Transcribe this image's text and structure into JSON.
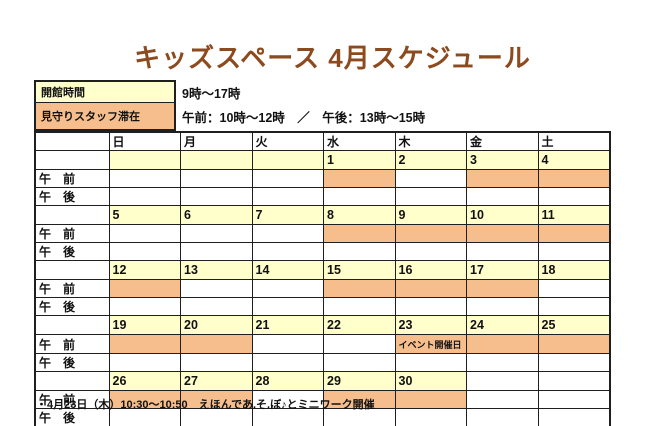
{
  "title": "キッズスペース 4月スケジュール",
  "colors": {
    "title_brown": "#8C4A1E",
    "cell_yellow": "#FFFFCC",
    "cell_orange": "#F6BE8C",
    "sunday_red": "#FF0000",
    "saturday_blue": "#0070C0",
    "grid_line": "#1f1f1f"
  },
  "legend": {
    "rows": [
      {
        "label": "開館時間",
        "value": "9時～17時",
        "swatch": "yellow"
      },
      {
        "label": "見守りスタッフ滞在",
        "value": "午前：10時～12時　／　午後：13時～15時",
        "swatch": "orange"
      }
    ]
  },
  "calendar": {
    "day_headers": [
      {
        "label": "日",
        "color": "red"
      },
      {
        "label": "月"
      },
      {
        "label": "火"
      },
      {
        "label": "水"
      },
      {
        "label": "木"
      },
      {
        "label": "金"
      },
      {
        "label": "土",
        "color": "blue"
      }
    ],
    "row_labels": {
      "am": "午　前",
      "pm": "午　後"
    },
    "event_label": "イベント開催日",
    "weeks": [
      {
        "dates": [
          {
            "t": "",
            "bg": "y"
          },
          {
            "t": "",
            "bg": "y"
          },
          {
            "t": "",
            "bg": "y"
          },
          {
            "t": "1",
            "bg": "y"
          },
          {
            "t": "2",
            "bg": "y"
          },
          {
            "t": "3",
            "bg": "y"
          },
          {
            "t": "4",
            "bg": "y"
          }
        ],
        "am": [
          false,
          false,
          false,
          true,
          false,
          true,
          true
        ],
        "pm": [
          false,
          false,
          false,
          false,
          false,
          false,
          false
        ]
      },
      {
        "dates": [
          {
            "t": "5",
            "bg": "y",
            "red": true
          },
          {
            "t": "6",
            "bg": "y"
          },
          {
            "t": "7",
            "bg": "y"
          },
          {
            "t": "8",
            "bg": "y"
          },
          {
            "t": "9",
            "bg": "y"
          },
          {
            "t": "10",
            "bg": "y"
          },
          {
            "t": "11",
            "bg": "y"
          }
        ],
        "am": [
          false,
          false,
          false,
          true,
          true,
          true,
          true
        ],
        "pm": [
          false,
          false,
          false,
          false,
          false,
          false,
          false
        ]
      },
      {
        "dates": [
          {
            "t": "12",
            "bg": "y",
            "red": true
          },
          {
            "t": "13",
            "bg": "y"
          },
          {
            "t": "14",
            "bg": "y"
          },
          {
            "t": "15",
            "bg": "y"
          },
          {
            "t": "16",
            "bg": "y"
          },
          {
            "t": "17",
            "bg": "y"
          },
          {
            "t": "18",
            "bg": "y"
          }
        ],
        "am": [
          true,
          false,
          false,
          true,
          true,
          true,
          false
        ],
        "pm": [
          false,
          false,
          false,
          false,
          false,
          false,
          false
        ]
      },
      {
        "dates": [
          {
            "t": "19",
            "bg": "y",
            "red": true
          },
          {
            "t": "20",
            "bg": "y"
          },
          {
            "t": "21",
            "bg": "y"
          },
          {
            "t": "22",
            "bg": "y"
          },
          {
            "t": "23",
            "bg": "y"
          },
          {
            "t": "24",
            "bg": "y"
          },
          {
            "t": "25",
            "bg": "y"
          }
        ],
        "am": [
          true,
          true,
          false,
          false,
          true,
          true,
          true
        ],
        "event_col": 4,
        "pm": [
          false,
          false,
          false,
          false,
          false,
          false,
          false
        ]
      },
      {
        "dates": [
          {
            "t": "26",
            "bg": "y",
            "red": true
          },
          {
            "t": "27",
            "bg": "y"
          },
          {
            "t": "28",
            "bg": "y"
          },
          {
            "t": "29",
            "bg": "y",
            "red": true
          },
          {
            "t": "30",
            "bg": "y"
          },
          {
            "t": "",
            "bg": "w"
          },
          {
            "t": "",
            "bg": "w"
          }
        ],
        "am": [
          true,
          true,
          false,
          true,
          true,
          false,
          false
        ],
        "pm": [
          false,
          false,
          false,
          false,
          false,
          false,
          false
        ]
      }
    ]
  },
  "footnote": "・4月23日（木）10:30～10:50　えほんであ.そ.ぼ♪とミニワーク開催"
}
